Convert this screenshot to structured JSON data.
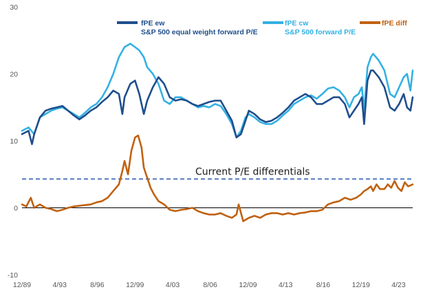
{
  "chart_data": {
    "type": "line",
    "ylim": [
      -10,
      30
    ],
    "y_ticks": [
      "-10",
      "0",
      "10",
      "20",
      "30"
    ],
    "x_ticks": [
      "12/89",
      "4/93",
      "8/96",
      "12/99",
      "4/03",
      "8/06",
      "12/09",
      "4/13",
      "8/16",
      "12/19",
      "4/23"
    ],
    "x_tick_values": [
      1989.92,
      1993.25,
      1996.58,
      1999.92,
      2003.25,
      2006.58,
      2009.92,
      2013.25,
      2016.58,
      2019.92,
      2023.25
    ],
    "xlim": [
      1989.92,
      2024.5
    ],
    "grid": false,
    "zero_line": true,
    "legend": [
      {
        "key": "ew",
        "label": "fPE ew",
        "sublabel": "S&P 500 equal weight forward P/E"
      },
      {
        "key": "cw",
        "label": "fPE cw",
        "sublabel": "S&P 500 forward P/E"
      },
      {
        "key": "diff",
        "label": "fPE diff",
        "sublabel": ""
      }
    ],
    "colors": {
      "ew": "#1f4e8c",
      "cw": "#33b1e3",
      "diff": "#c0610f",
      "ref": "#2e5fb5",
      "zero": "#000000"
    },
    "annotations": [
      {
        "text": "Current P/E differentials",
        "x": 1993.0,
        "y": 4.2
      }
    ],
    "reference_line": {
      "y": 4.3,
      "style": "dashed"
    },
    "series": [
      {
        "name": "fPE cw",
        "key": "cw",
        "x": [
          1989.92,
          1990.5,
          1991.0,
          1991.5,
          1992.0,
          1992.5,
          1993.0,
          1993.5,
          1994.0,
          1994.5,
          1995.0,
          1995.5,
          1996.0,
          1996.5,
          1997.0,
          1997.5,
          1998.0,
          1998.5,
          1999.0,
          1999.5,
          1999.92,
          2000.3,
          2000.7,
          2001.0,
          2001.5,
          2002.0,
          2002.5,
          2003.0,
          2003.5,
          2004.0,
          2004.5,
          2005.0,
          2005.5,
          2006.0,
          2006.5,
          2007.0,
          2007.5,
          2008.0,
          2008.5,
          2008.9,
          2009.3,
          2009.7,
          2010.0,
          2010.5,
          2011.0,
          2011.5,
          2012.0,
          2012.5,
          2013.0,
          2013.5,
          2014.0,
          2014.5,
          2015.0,
          2015.5,
          2016.0,
          2016.5,
          2017.0,
          2017.5,
          2018.0,
          2018.5,
          2018.9,
          2019.3,
          2019.7,
          2020.0,
          2020.2,
          2020.5,
          2020.8,
          2021.0,
          2021.5,
          2022.0,
          2022.5,
          2022.9,
          2023.3,
          2023.7,
          2024.0,
          2024.3,
          2024.5
        ],
        "values": [
          11.5,
          12.0,
          11.0,
          13.5,
          14.0,
          14.5,
          14.8,
          15.0,
          14.5,
          14.0,
          13.5,
          14.2,
          15.0,
          15.5,
          16.5,
          18.0,
          20.0,
          22.5,
          24.0,
          24.5,
          24.0,
          23.5,
          22.5,
          21.0,
          20.0,
          18.5,
          16.0,
          15.5,
          16.5,
          16.5,
          16.0,
          15.5,
          15.0,
          15.2,
          15.0,
          15.5,
          15.2,
          14.0,
          12.5,
          10.5,
          11.5,
          13.5,
          14.0,
          13.5,
          12.8,
          12.5,
          12.5,
          13.0,
          13.8,
          14.5,
          15.5,
          16.0,
          16.5,
          16.8,
          16.3,
          17.0,
          17.8,
          18.0,
          17.5,
          16.5,
          15.0,
          16.5,
          17.0,
          18.0,
          14.5,
          21.0,
          22.5,
          23.0,
          22.0,
          20.5,
          17.0,
          16.5,
          18.0,
          19.5,
          20.0,
          17.5,
          20.5
        ]
      },
      {
        "name": "fPE ew",
        "key": "ew",
        "x": [
          1989.92,
          1990.5,
          1990.8,
          1991.0,
          1991.5,
          1992.0,
          1992.5,
          1993.0,
          1993.5,
          1994.0,
          1994.5,
          1995.0,
          1995.5,
          1996.0,
          1996.5,
          1997.0,
          1997.5,
          1998.0,
          1998.5,
          1998.8,
          1999.0,
          1999.5,
          1999.92,
          2000.3,
          2000.7,
          2001.0,
          2001.5,
          2002.0,
          2002.5,
          2003.0,
          2003.5,
          2004.0,
          2004.5,
          2005.0,
          2005.5,
          2006.0,
          2006.5,
          2007.0,
          2007.5,
          2008.0,
          2008.5,
          2008.9,
          2009.3,
          2009.7,
          2010.0,
          2010.5,
          2011.0,
          2011.5,
          2012.0,
          2012.5,
          2013.0,
          2013.5,
          2014.0,
          2014.5,
          2015.0,
          2015.5,
          2016.0,
          2016.5,
          2017.0,
          2017.5,
          2018.0,
          2018.5,
          2018.9,
          2019.3,
          2019.7,
          2020.0,
          2020.2,
          2020.5,
          2020.8,
          2021.0,
          2021.5,
          2022.0,
          2022.5,
          2022.9,
          2023.3,
          2023.7,
          2024.0,
          2024.3,
          2024.5
        ],
        "values": [
          11.0,
          11.5,
          9.5,
          11.0,
          13.5,
          14.5,
          14.8,
          15.0,
          15.2,
          14.5,
          13.8,
          13.2,
          13.8,
          14.5,
          15.0,
          15.8,
          16.5,
          17.5,
          17.0,
          14.0,
          16.5,
          18.5,
          19.0,
          17.0,
          14.0,
          16.0,
          18.0,
          19.5,
          18.5,
          16.5,
          16.0,
          16.2,
          16.0,
          15.5,
          15.2,
          15.5,
          15.8,
          16.0,
          16.0,
          14.5,
          13.0,
          10.5,
          11.0,
          13.0,
          14.5,
          14.0,
          13.2,
          12.8,
          13.0,
          13.5,
          14.2,
          15.0,
          16.0,
          16.5,
          17.0,
          16.5,
          15.5,
          15.5,
          16.0,
          16.5,
          16.5,
          15.5,
          13.5,
          14.5,
          15.5,
          16.5,
          12.5,
          19.0,
          20.5,
          20.5,
          19.5,
          18.0,
          15.0,
          14.5,
          15.5,
          17.0,
          15.0,
          14.5,
          16.5
        ]
      },
      {
        "name": "fPE diff",
        "key": "diff",
        "x": [
          1989.92,
          1990.3,
          1990.7,
          1991.0,
          1991.5,
          1992.0,
          1992.5,
          1993.0,
          1993.5,
          1994.0,
          1994.5,
          1995.0,
          1995.5,
          1996.0,
          1996.5,
          1997.0,
          1997.5,
          1998.0,
          1998.5,
          1998.8,
          1999.0,
          1999.3,
          1999.6,
          1999.92,
          2000.2,
          2000.5,
          2000.7,
          2001.0,
          2001.3,
          2001.6,
          2002.0,
          2002.5,
          2003.0,
          2003.5,
          2004.0,
          2004.5,
          2005.0,
          2005.5,
          2006.0,
          2006.5,
          2007.0,
          2007.5,
          2008.0,
          2008.5,
          2008.9,
          2009.1,
          2009.5,
          2010.0,
          2010.5,
          2011.0,
          2011.5,
          2012.0,
          2012.5,
          2013.0,
          2013.5,
          2014.0,
          2014.5,
          2015.0,
          2015.5,
          2016.0,
          2016.5,
          2017.0,
          2017.5,
          2018.0,
          2018.5,
          2019.0,
          2019.5,
          2019.92,
          2020.2,
          2020.5,
          2020.8,
          2021.0,
          2021.3,
          2021.6,
          2022.0,
          2022.3,
          2022.6,
          2022.9,
          2023.2,
          2023.5,
          2023.8,
          2024.1,
          2024.5
        ],
        "values": [
          0.5,
          0.2,
          1.5,
          0.0,
          0.5,
          0.0,
          -0.2,
          -0.5,
          -0.3,
          0.0,
          0.2,
          0.3,
          0.4,
          0.5,
          0.8,
          1.0,
          1.5,
          2.5,
          3.5,
          5.5,
          7.0,
          5.0,
          8.5,
          10.5,
          10.8,
          9.0,
          6.0,
          4.5,
          3.0,
          2.0,
          1.0,
          0.5,
          -0.3,
          -0.5,
          -0.3,
          -0.2,
          0.0,
          -0.5,
          -0.8,
          -1.0,
          -1.0,
          -0.8,
          -1.2,
          -1.5,
          -1.0,
          0.5,
          -2.0,
          -1.5,
          -1.2,
          -1.5,
          -1.0,
          -0.8,
          -0.8,
          -1.0,
          -0.8,
          -1.0,
          -0.8,
          -0.7,
          -0.5,
          -0.5,
          -0.3,
          0.5,
          0.8,
          1.0,
          1.5,
          1.2,
          1.5,
          2.0,
          2.5,
          2.8,
          3.2,
          2.5,
          3.5,
          2.8,
          2.8,
          3.5,
          3.0,
          4.0,
          3.0,
          2.5,
          3.8,
          3.2,
          3.5
        ]
      }
    ]
  }
}
